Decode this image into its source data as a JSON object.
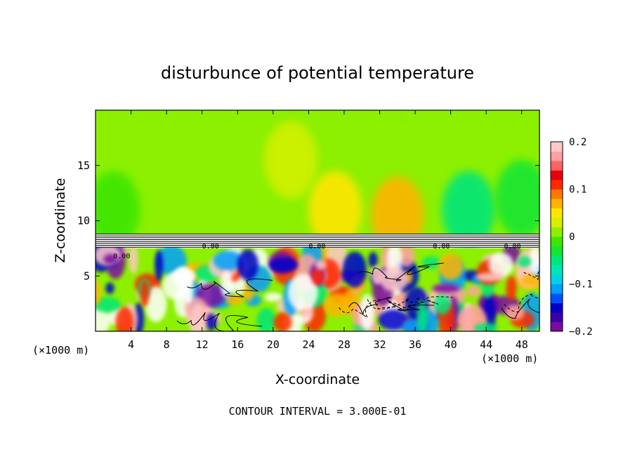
{
  "chart_data": {
    "type": "heatmap",
    "title": "disturbunce of potential temperature",
    "xlabel": "X-coordinate",
    "ylabel": "Z-coordinate",
    "x_unit_left": "(×1000 m)",
    "x_unit_right": "(×1000 m)",
    "footer": "CONTOUR INTERVAL = 3.000E-01",
    "xlim": [
      0,
      50
    ],
    "ylim": [
      0,
      20
    ],
    "x_ticks": [
      4,
      8,
      12,
      16,
      20,
      24,
      28,
      32,
      36,
      40,
      44,
      48
    ],
    "y_ticks": [
      5,
      10,
      15
    ],
    "colorbar": {
      "range": [
        -0.2,
        0.2
      ],
      "tick_labels": [
        "0.2",
        "0.1",
        "0",
        "−0.1",
        "−0.2"
      ],
      "tick_values": [
        0.2,
        0.1,
        0,
        -0.1,
        -0.2
      ],
      "colors": [
        "#7a0aa0",
        "#3c00aa",
        "#0000c8",
        "#0050ff",
        "#00a0ff",
        "#00d2e6",
        "#00e6b4",
        "#00e678",
        "#14e632",
        "#3ce600",
        "#8cf000",
        "#d2f000",
        "#ffe600",
        "#ffb400",
        "#ff7800",
        "#ff2800",
        "#e6000a",
        "#ff6464",
        "#ffa0a0",
        "#ffc8c8"
      ]
    },
    "contour_labels": [
      "0.00",
      "0.00",
      "0.00",
      "0.00",
      "0.00"
    ],
    "regions": {
      "upper_field_value": 0.0,
      "upper_positive_patches": [
        {
          "x": 34,
          "z": 10.5,
          "value": 0.06
        },
        {
          "x": 27,
          "z": 11,
          "value": 0.04
        },
        {
          "x": 22,
          "z": 15.5,
          "value": 0.03
        }
      ],
      "upper_negative_patches": [
        {
          "x": 42,
          "z": 11,
          "value": -0.05
        },
        {
          "x": 48,
          "z": 12,
          "value": -0.03
        },
        {
          "x": 2,
          "z": 11,
          "value": -0.02
        }
      ],
      "stable_layer_z": [
        7.6,
        8.8
      ],
      "boundary_layer_top_z": 7.5
    }
  }
}
